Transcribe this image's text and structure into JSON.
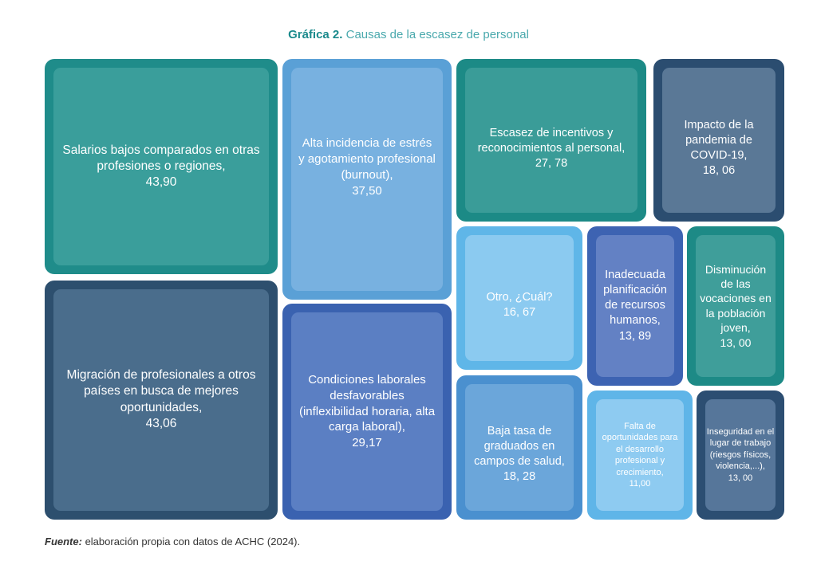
{
  "title": {
    "number": "Gráfica 2.",
    "text": "Causas de la escasez de personal"
  },
  "chart_data": {
    "type": "treemap",
    "items": [
      {
        "name": "Salarios bajos comparados en otras profesiones o regiones,",
        "value_label": "43,90",
        "value": 43.9,
        "color": "#1f8c8a",
        "inner_color": "#3a9e9b"
      },
      {
        "name": "Migración de profesionales a otros países en busca de mejores oportunidades,",
        "value_label": "43,06",
        "value": 43.06,
        "color": "#2d4f6e",
        "inner_color": "#4a6d8c"
      },
      {
        "name": "Alta incidencia de estrés y agotamiento profesional (burnout),",
        "value_label": "37,50",
        "value": 37.5,
        "color": "#5aa0d6",
        "inner_color": "#78b1e0"
      },
      {
        "name": "Condiciones laborales desfavorables (inflexibilidad horaria, alta carga laboral),",
        "value_label": "29,17",
        "value": 29.17,
        "color": "#3a62b0",
        "inner_color": "#5b7fc3"
      },
      {
        "name": "Escasez de incentivos y reconocimientos al personal,",
        "value_label": "27, 78",
        "value": 27.78,
        "color": "#1c8a86",
        "inner_color": "#3a9c98"
      },
      {
        "name": "Impacto de la pandemia de COVID-19,",
        "value_label": "18, 06",
        "value": 18.06,
        "color": "#2b4d70",
        "inner_color": "#5a7896"
      },
      {
        "name": "Otro, ¿Cuál?",
        "value_label": "16, 67",
        "value": 16.67,
        "color": "#5fb6e8",
        "inner_color": "#8bcaf0"
      },
      {
        "name": "Baja tasa de graduados en campos de salud,",
        "value_label": "18, 28",
        "value": 18.28,
        "color": "#4a90cf",
        "inner_color": "#6ba6da"
      },
      {
        "name": "Inadecuada planificación de recursos humanos,",
        "value_label": "13, 89",
        "value": 13.89,
        "color": "#3d63b2",
        "inner_color": "#6381c4"
      },
      {
        "name": "Disminución de las vocaciones en la población joven,",
        "value_label": "13, 00",
        "value": 13.0,
        "color": "#1d8a86",
        "inner_color": "#3f9e9a"
      },
      {
        "name": "Falta de oportunidades para el desarrollo profesional y crecimiento,",
        "value_label": "11,00",
        "value": 11.0,
        "color": "#5fb5e8",
        "inner_color": "#8ecbf1"
      },
      {
        "name": "Inseguridad en el lugar de trabajo (riesgos físicos, violencia,...),",
        "value_label": "13, 00",
        "value": 13.0,
        "color": "#2c4e72",
        "inner_color": "#56769a"
      }
    ]
  },
  "source": {
    "label": "Fuente:",
    "text": " elaboración propia con datos de ACHC (2024)."
  }
}
